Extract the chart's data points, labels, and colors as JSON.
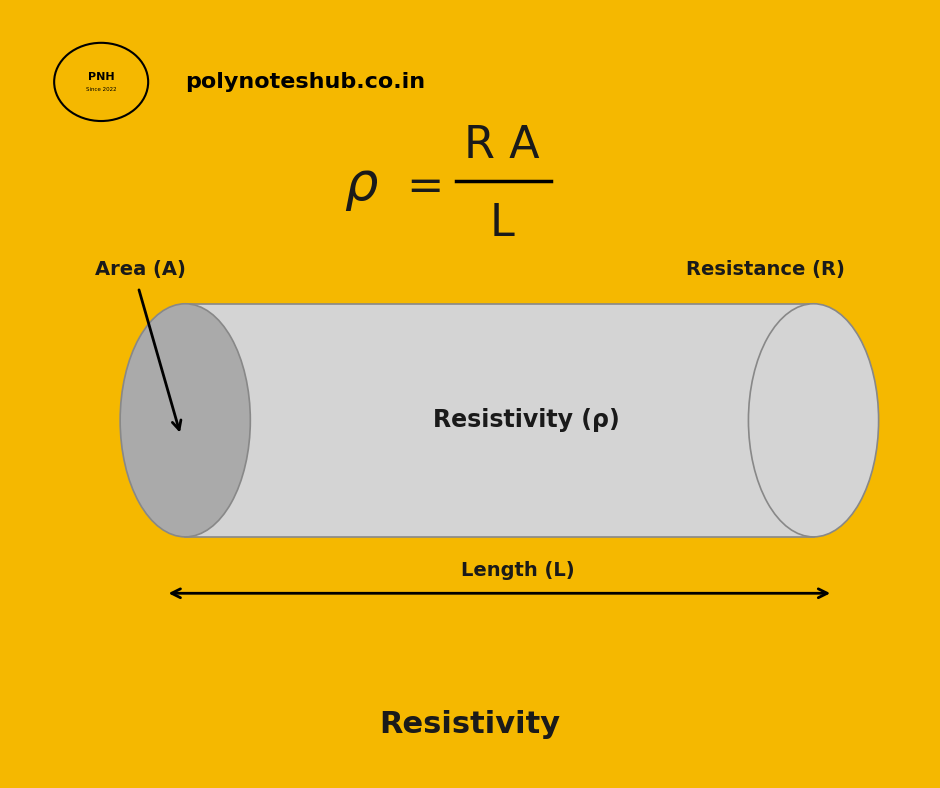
{
  "background_color": "#ffffff",
  "border_color": "#F5B800",
  "title_text": "Resistivity",
  "title_fontsize": 22,
  "formula_fontsize": 32,
  "cylinder_body_color": "#d4d4d4",
  "cylinder_face_color": "#aaaaaa",
  "label_area": "Area (A)",
  "label_resistance": "Resistance (R)",
  "label_resistivity": "Resistivity (ρ)",
  "label_length": "Length (L)",
  "label_fontsize": 14,
  "logo_text": "polynoteshub.co.in",
  "logo_fontsize": 16,
  "text_color": "#1a1a1a"
}
